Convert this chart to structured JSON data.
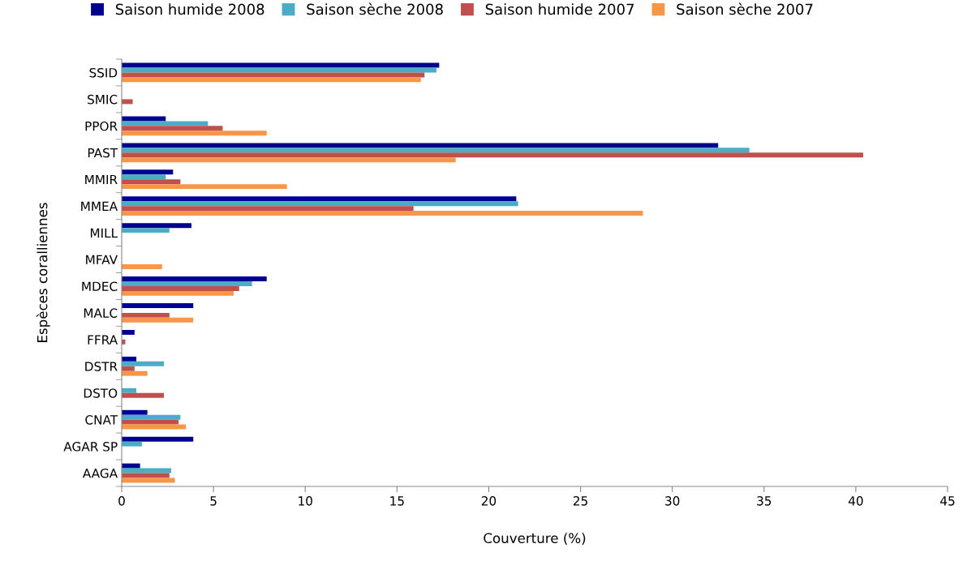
{
  "chart_data": {
    "type": "bar",
    "orientation": "horizontal",
    "xlabel": "Couverture (%)",
    "ylabel": "Espèces coralliennes",
    "categories": [
      "SSID",
      "SMIC",
      "PPOR",
      "PAST",
      "MMIR",
      "MMEA",
      "MILL",
      "MFAV",
      "MDEC",
      "MALC",
      "FFRA",
      "DSTR",
      "DSTO",
      "CNAT",
      "AGAR SP",
      "AAGA"
    ],
    "series": [
      {
        "name": "Saison humide 2008",
        "color": "#000090",
        "values": [
          17.3,
          0,
          2.4,
          32.5,
          2.8,
          21.5,
          3.8,
          0,
          7.9,
          3.9,
          0.7,
          0.8,
          0,
          1.4,
          3.9,
          1.0
        ]
      },
      {
        "name": "Saison sèche 2008",
        "color": "#4bacc6",
        "values": [
          17.15,
          0,
          4.7,
          34.2,
          2.4,
          21.6,
          2.6,
          0,
          7.1,
          0,
          0,
          2.3,
          0.8,
          3.2,
          1.1,
          2.7
        ]
      },
      {
        "name": "Saison humide 2007",
        "color": "#c0504d",
        "values": [
          16.5,
          0.6,
          5.5,
          40.4,
          3.2,
          15.9,
          0,
          0,
          6.4,
          2.6,
          0.2,
          0.7,
          2.3,
          3.1,
          0,
          2.6
        ]
      },
      {
        "name": "Saison sèche 2007",
        "color": "#f79646",
        "values": [
          16.3,
          0,
          7.9,
          18.2,
          9.0,
          28.4,
          0,
          2.2,
          6.1,
          3.9,
          0,
          1.4,
          0,
          3.5,
          0,
          2.9
        ]
      }
    ],
    "xlim": [
      0,
      45
    ],
    "xticks": [
      0,
      5,
      10,
      15,
      20,
      25,
      30,
      35,
      40,
      45
    ],
    "grid": false,
    "legend": "top"
  }
}
